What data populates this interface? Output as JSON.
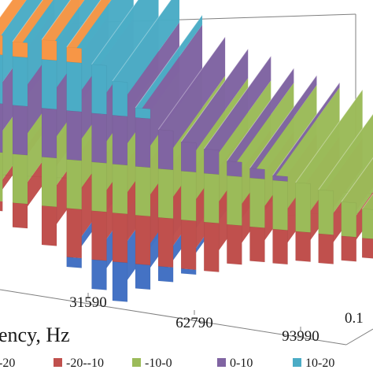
{
  "chart_data": {
    "type": "surface",
    "title": "",
    "xlabel": "ency, Hz",
    "ylabel": "",
    "x_ticks": [
      "31590",
      "62790",
      "93990"
    ],
    "depth_ticks": [
      "0.1"
    ],
    "x_range": [
      390,
      93990
    ],
    "z_range": [
      -30,
      20
    ],
    "legend_position": "bottom",
    "legend": [
      {
        "label": "-20",
        "color": "#4472c4"
      },
      {
        "label": "-20--10",
        "color": "#c0504d"
      },
      {
        "label": "-10-0",
        "color": "#9bbb59"
      },
      {
        "label": "0-10",
        "color": "#8064a2"
      },
      {
        "label": "10-20",
        "color": "#4bacc6"
      }
    ],
    "band_colors": {
      "below_-20": "#4472c4",
      "-20_-10": "#c0504d",
      "-10_0": "#9bbb59",
      "0_10": "#8064a2",
      "10_20": "#4bacc6",
      "above_20": "#f79646"
    },
    "series": [
      {
        "x": 3000,
        "peak": 24,
        "trough": -12
      },
      {
        "x": 9000,
        "peak": 23,
        "trough": -15
      },
      {
        "x": 16000,
        "peak": 24,
        "trough": -18
      },
      {
        "x": 22000,
        "peak": 23,
        "trough": -22
      },
      {
        "x": 28000,
        "peak": 20,
        "trough": -26
      },
      {
        "x": 33000,
        "peak": 17,
        "trough": -28
      },
      {
        "x": 38500,
        "peak": 12,
        "trough": -25
      },
      {
        "x": 44000,
        "peak": 8,
        "trough": -23
      },
      {
        "x": 49500,
        "peak": 6,
        "trough": -21
      },
      {
        "x": 55000,
        "peak": 5,
        "trough": -20
      },
      {
        "x": 60500,
        "peak": 3,
        "trough": -18
      },
      {
        "x": 66000,
        "peak": 2,
        "trough": -17
      },
      {
        "x": 71500,
        "peak": 1,
        "trough": -17
      },
      {
        "x": 77000,
        "peak": 0,
        "trough": -16
      },
      {
        "x": 82500,
        "peak": -1,
        "trough": -16
      },
      {
        "x": 88000,
        "peak": -3,
        "trough": -15
      },
      {
        "x": 93000,
        "peak": -4,
        "trough": -14
      }
    ]
  }
}
